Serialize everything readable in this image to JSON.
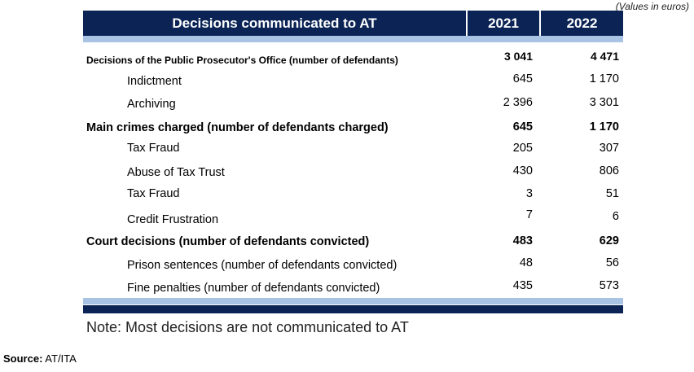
{
  "unit_note": "(Values in euros)",
  "header": {
    "title": "Decisions communicated to AT",
    "year1": "2021",
    "year2": "2022"
  },
  "rows": [
    {
      "label": "Decisions of the Public Prosecutor's Office (number of defendants)",
      "v2021": "3 041",
      "v2022": "4 471"
    },
    {
      "label": "Indictment",
      "v2021": "645",
      "v2022": "1 170"
    },
    {
      "label": "Archiving",
      "v2021": "2 396",
      "v2022": "3 301"
    },
    {
      "label": "Main crimes charged (number of defendants charged)",
      "v2021": "645",
      "v2022": "1 170"
    },
    {
      "label": "Tax Fraud",
      "v2021": "205",
      "v2022": "307"
    },
    {
      "label": "Abuse of Tax Trust",
      "v2021": "430",
      "v2022": "806"
    },
    {
      "label": "Tax Fraud",
      "v2021": "3",
      "v2022": "51"
    },
    {
      "label": "Credit Frustration",
      "v2021": "7",
      "v2022": "6"
    },
    {
      "label": "Court decisions (number of defendants convicted)",
      "v2021": "483",
      "v2022": "629"
    },
    {
      "label": "Prison sentences (number of defendants convicted)",
      "v2021": "48",
      "v2022": "56"
    },
    {
      "label": "Fine penalties (number of defendants convicted)",
      "v2021": "435",
      "v2022": "573"
    }
  ],
  "note": "Note: Most decisions are not communicated to AT",
  "source": {
    "label": "Source:",
    "value": " AT/ITA"
  }
}
